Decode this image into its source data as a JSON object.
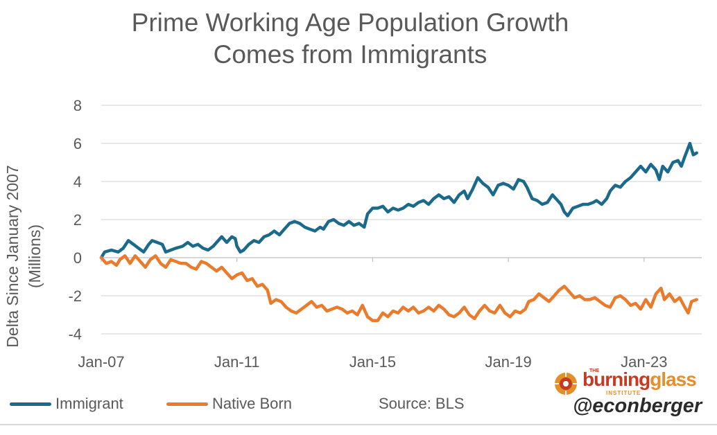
{
  "chart_data": {
    "type": "line",
    "title": [
      "Prime Working Age Population Growth",
      "Comes from Immigrants"
    ],
    "ylabel": [
      "Delta Since January 2007",
      "(Millions)"
    ],
    "xlabel": "",
    "ylim": [
      -4,
      8
    ],
    "yticks": [
      8,
      6,
      4,
      2,
      0,
      -2,
      -4
    ],
    "xlim": [
      2007.0,
      2024.7
    ],
    "xticks": [
      {
        "value": 2007.0,
        "label": "Jan-07"
      },
      {
        "value": 2011.0,
        "label": "Jan-11"
      },
      {
        "value": 2015.0,
        "label": "Jan-15"
      },
      {
        "value": 2019.0,
        "label": "Jan-19"
      },
      {
        "value": 2023.0,
        "label": "Jan-23"
      }
    ],
    "grid": "horizontal",
    "series": [
      {
        "name": "Immigrant",
        "color": "#1b6a8c",
        "points": [
          [
            2007.0,
            0.0
          ],
          [
            2007.1,
            0.3
          ],
          [
            2007.3,
            0.4
          ],
          [
            2007.5,
            0.3
          ],
          [
            2007.65,
            0.5
          ],
          [
            2007.8,
            0.9
          ],
          [
            2007.95,
            0.7
          ],
          [
            2008.1,
            0.5
          ],
          [
            2008.25,
            0.3
          ],
          [
            2008.4,
            0.7
          ],
          [
            2008.5,
            0.9
          ],
          [
            2008.65,
            0.8
          ],
          [
            2008.8,
            0.7
          ],
          [
            2008.9,
            0.3
          ],
          [
            2009.05,
            0.4
          ],
          [
            2009.2,
            0.5
          ],
          [
            2009.4,
            0.6
          ],
          [
            2009.55,
            0.8
          ],
          [
            2009.7,
            0.6
          ],
          [
            2009.85,
            0.7
          ],
          [
            2010.0,
            0.5
          ],
          [
            2010.15,
            0.4
          ],
          [
            2010.3,
            0.6
          ],
          [
            2010.45,
            0.9
          ],
          [
            2010.55,
            1.1
          ],
          [
            2010.7,
            0.8
          ],
          [
            2010.85,
            1.1
          ],
          [
            2010.95,
            1.0
          ],
          [
            2011.0,
            0.6
          ],
          [
            2011.1,
            0.3
          ],
          [
            2011.2,
            0.4
          ],
          [
            2011.35,
            0.7
          ],
          [
            2011.5,
            0.9
          ],
          [
            2011.65,
            0.8
          ],
          [
            2011.8,
            1.1
          ],
          [
            2011.95,
            1.2
          ],
          [
            2012.1,
            1.4
          ],
          [
            2012.25,
            1.2
          ],
          [
            2012.4,
            1.5
          ],
          [
            2012.55,
            1.8
          ],
          [
            2012.7,
            1.9
          ],
          [
            2012.85,
            1.8
          ],
          [
            2013.0,
            1.6
          ],
          [
            2013.15,
            1.5
          ],
          [
            2013.3,
            1.4
          ],
          [
            2013.45,
            1.6
          ],
          [
            2013.55,
            1.5
          ],
          [
            2013.7,
            1.9
          ],
          [
            2013.85,
            2.0
          ],
          [
            2014.0,
            1.8
          ],
          [
            2014.15,
            1.7
          ],
          [
            2014.3,
            1.9
          ],
          [
            2014.45,
            1.7
          ],
          [
            2014.6,
            1.8
          ],
          [
            2014.75,
            1.6
          ],
          [
            2014.85,
            2.3
          ],
          [
            2015.0,
            2.6
          ],
          [
            2015.15,
            2.6
          ],
          [
            2015.3,
            2.7
          ],
          [
            2015.45,
            2.4
          ],
          [
            2015.6,
            2.6
          ],
          [
            2015.75,
            2.5
          ],
          [
            2015.9,
            2.6
          ],
          [
            2016.05,
            2.8
          ],
          [
            2016.2,
            2.7
          ],
          [
            2016.35,
            2.9
          ],
          [
            2016.5,
            3.0
          ],
          [
            2016.65,
            2.8
          ],
          [
            2016.8,
            3.1
          ],
          [
            2016.95,
            3.3
          ],
          [
            2017.1,
            3.1
          ],
          [
            2017.25,
            3.2
          ],
          [
            2017.4,
            2.9
          ],
          [
            2017.55,
            3.3
          ],
          [
            2017.7,
            3.5
          ],
          [
            2017.8,
            3.1
          ],
          [
            2017.95,
            3.6
          ],
          [
            2018.1,
            4.2
          ],
          [
            2018.25,
            3.9
          ],
          [
            2018.4,
            3.7
          ],
          [
            2018.55,
            3.3
          ],
          [
            2018.7,
            3.8
          ],
          [
            2018.85,
            3.9
          ],
          [
            2019.0,
            3.8
          ],
          [
            2019.15,
            3.6
          ],
          [
            2019.3,
            4.1
          ],
          [
            2019.45,
            4.0
          ],
          [
            2019.55,
            3.7
          ],
          [
            2019.7,
            3.1
          ],
          [
            2019.85,
            3.0
          ],
          [
            2020.0,
            2.8
          ],
          [
            2020.15,
            2.9
          ],
          [
            2020.3,
            3.3
          ],
          [
            2020.45,
            3.0
          ],
          [
            2020.55,
            2.8
          ],
          [
            2020.65,
            2.4
          ],
          [
            2020.75,
            2.2
          ],
          [
            2020.9,
            2.6
          ],
          [
            2021.05,
            2.7
          ],
          [
            2021.2,
            2.8
          ],
          [
            2021.35,
            2.8
          ],
          [
            2021.5,
            2.9
          ],
          [
            2021.6,
            3.0
          ],
          [
            2021.75,
            2.8
          ],
          [
            2021.9,
            3.1
          ],
          [
            2022.0,
            3.5
          ],
          [
            2022.15,
            3.8
          ],
          [
            2022.3,
            3.7
          ],
          [
            2022.45,
            4.0
          ],
          [
            2022.6,
            4.2
          ],
          [
            2022.75,
            4.5
          ],
          [
            2022.9,
            4.8
          ],
          [
            2023.05,
            4.5
          ],
          [
            2023.2,
            4.9
          ],
          [
            2023.35,
            4.6
          ],
          [
            2023.45,
            4.1
          ],
          [
            2023.55,
            4.8
          ],
          [
            2023.7,
            4.5
          ],
          [
            2023.85,
            5.0
          ],
          [
            2024.0,
            5.1
          ],
          [
            2024.1,
            4.8
          ],
          [
            2024.2,
            5.3
          ],
          [
            2024.35,
            6.0
          ],
          [
            2024.45,
            5.4
          ],
          [
            2024.55,
            5.5
          ]
        ]
      },
      {
        "name": "Native Born",
        "color": "#e97b2d",
        "points": [
          [
            2007.0,
            0.0
          ],
          [
            2007.15,
            -0.3
          ],
          [
            2007.3,
            -0.2
          ],
          [
            2007.45,
            -0.4
          ],
          [
            2007.55,
            -0.1
          ],
          [
            2007.7,
            0.1
          ],
          [
            2007.85,
            -0.3
          ],
          [
            2008.0,
            0.1
          ],
          [
            2008.15,
            -0.2
          ],
          [
            2008.3,
            -0.5
          ],
          [
            2008.45,
            -0.1
          ],
          [
            2008.6,
            0.1
          ],
          [
            2008.75,
            -0.3
          ],
          [
            2008.9,
            -0.5
          ],
          [
            2009.05,
            -0.1
          ],
          [
            2009.2,
            -0.2
          ],
          [
            2009.35,
            -0.3
          ],
          [
            2009.5,
            -0.3
          ],
          [
            2009.65,
            -0.5
          ],
          [
            2009.8,
            -0.6
          ],
          [
            2009.95,
            -0.2
          ],
          [
            2010.1,
            -0.3
          ],
          [
            2010.25,
            -0.5
          ],
          [
            2010.4,
            -0.7
          ],
          [
            2010.55,
            -0.5
          ],
          [
            2010.7,
            -0.8
          ],
          [
            2010.85,
            -1.1
          ],
          [
            2011.0,
            -0.9
          ],
          [
            2011.15,
            -0.8
          ],
          [
            2011.3,
            -1.2
          ],
          [
            2011.45,
            -1.1
          ],
          [
            2011.6,
            -1.5
          ],
          [
            2011.75,
            -1.4
          ],
          [
            2011.9,
            -1.7
          ],
          [
            2012.0,
            -2.4
          ],
          [
            2012.15,
            -2.2
          ],
          [
            2012.3,
            -2.3
          ],
          [
            2012.45,
            -2.6
          ],
          [
            2012.6,
            -2.8
          ],
          [
            2012.75,
            -2.9
          ],
          [
            2012.9,
            -2.7
          ],
          [
            2013.05,
            -2.5
          ],
          [
            2013.2,
            -2.3
          ],
          [
            2013.35,
            -2.6
          ],
          [
            2013.5,
            -2.5
          ],
          [
            2013.65,
            -2.8
          ],
          [
            2013.8,
            -2.7
          ],
          [
            2013.95,
            -2.6
          ],
          [
            2014.1,
            -2.7
          ],
          [
            2014.25,
            -2.9
          ],
          [
            2014.4,
            -2.8
          ],
          [
            2014.55,
            -3.0
          ],
          [
            2014.7,
            -2.5
          ],
          [
            2014.85,
            -3.1
          ],
          [
            2015.0,
            -3.3
          ],
          [
            2015.15,
            -3.3
          ],
          [
            2015.3,
            -2.9
          ],
          [
            2015.45,
            -3.1
          ],
          [
            2015.6,
            -2.8
          ],
          [
            2015.75,
            -2.9
          ],
          [
            2015.9,
            -2.6
          ],
          [
            2016.05,
            -2.8
          ],
          [
            2016.2,
            -2.6
          ],
          [
            2016.35,
            -2.9
          ],
          [
            2016.5,
            -2.8
          ],
          [
            2016.65,
            -2.6
          ],
          [
            2016.8,
            -2.8
          ],
          [
            2016.95,
            -2.5
          ],
          [
            2017.1,
            -2.7
          ],
          [
            2017.25,
            -3.0
          ],
          [
            2017.4,
            -3.1
          ],
          [
            2017.55,
            -2.9
          ],
          [
            2017.7,
            -2.6
          ],
          [
            2017.85,
            -3.0
          ],
          [
            2018.0,
            -3.2
          ],
          [
            2018.15,
            -2.8
          ],
          [
            2018.3,
            -2.5
          ],
          [
            2018.45,
            -2.8
          ],
          [
            2018.6,
            -2.9
          ],
          [
            2018.75,
            -2.5
          ],
          [
            2018.9,
            -2.9
          ],
          [
            2019.05,
            -3.1
          ],
          [
            2019.2,
            -2.8
          ],
          [
            2019.35,
            -2.9
          ],
          [
            2019.5,
            -2.7
          ],
          [
            2019.6,
            -2.3
          ],
          [
            2019.75,
            -2.2
          ],
          [
            2019.9,
            -1.9
          ],
          [
            2020.05,
            -2.1
          ],
          [
            2020.2,
            -2.3
          ],
          [
            2020.35,
            -2.0
          ],
          [
            2020.5,
            -1.7
          ],
          [
            2020.65,
            -1.5
          ],
          [
            2020.8,
            -1.8
          ],
          [
            2020.95,
            -2.1
          ],
          [
            2021.1,
            -2.0
          ],
          [
            2021.25,
            -2.2
          ],
          [
            2021.4,
            -2.2
          ],
          [
            2021.55,
            -2.1
          ],
          [
            2021.7,
            -2.3
          ],
          [
            2021.85,
            -2.5
          ],
          [
            2022.0,
            -2.6
          ],
          [
            2022.15,
            -2.1
          ],
          [
            2022.3,
            -2.0
          ],
          [
            2022.45,
            -2.2
          ],
          [
            2022.6,
            -2.5
          ],
          [
            2022.75,
            -2.4
          ],
          [
            2022.9,
            -2.7
          ],
          [
            2023.05,
            -2.2
          ],
          [
            2023.2,
            -2.6
          ],
          [
            2023.35,
            -1.9
          ],
          [
            2023.5,
            -1.6
          ],
          [
            2023.6,
            -2.2
          ],
          [
            2023.75,
            -1.9
          ],
          [
            2023.9,
            -2.3
          ],
          [
            2024.05,
            -2.1
          ],
          [
            2024.2,
            -2.6
          ],
          [
            2024.3,
            -2.9
          ],
          [
            2024.4,
            -2.3
          ],
          [
            2024.55,
            -2.2
          ]
        ]
      }
    ],
    "legend": [
      "Immigrant",
      "Native Born"
    ],
    "legend_position": "bottom-left"
  },
  "source": "Source: BLS",
  "branding": {
    "the": "THE",
    "name_part1": "burning",
    "name_part2": "glass",
    "institute": "INSTITUTE",
    "handle": "@econberger"
  }
}
